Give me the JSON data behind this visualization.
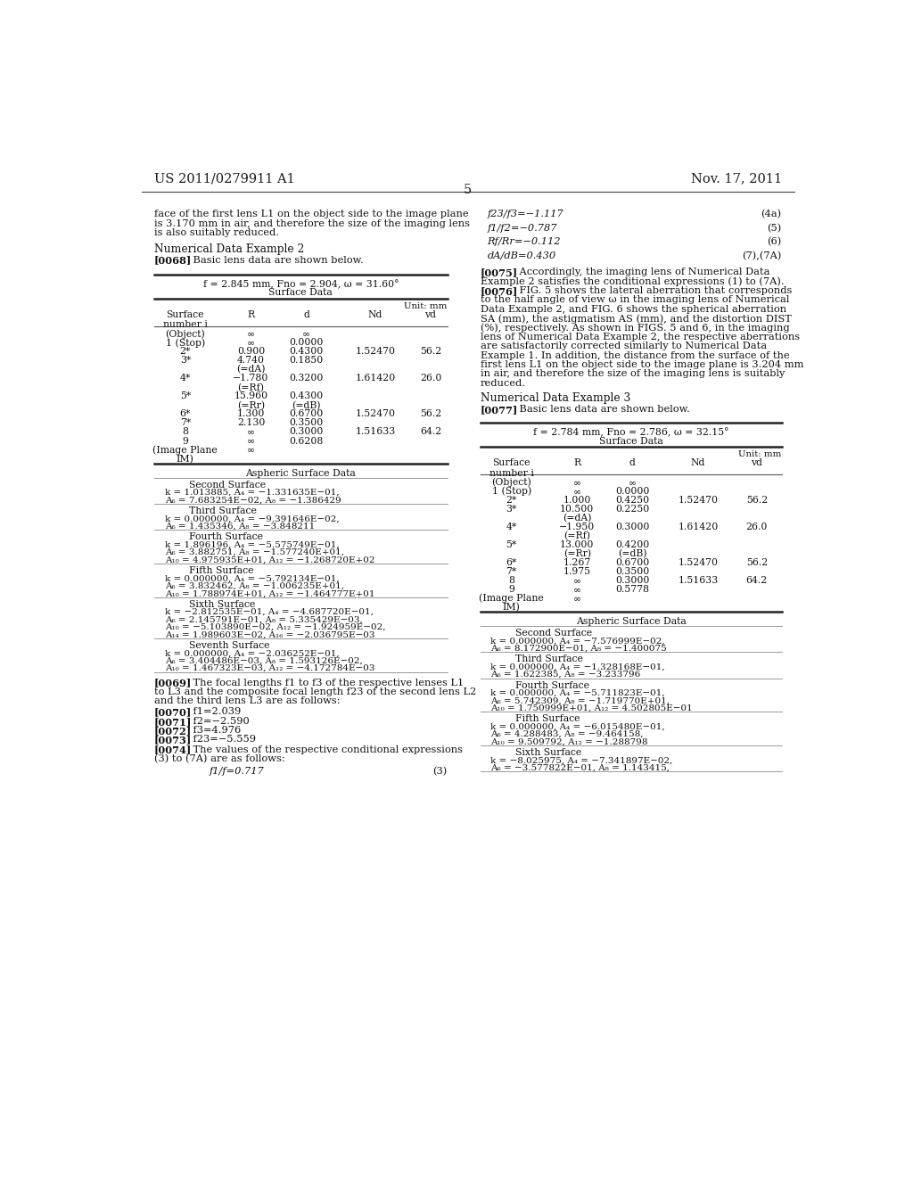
{
  "bg_color": "#ffffff",
  "header_left": "US 2011/0279911 A1",
  "header_right": "Nov. 17, 2011",
  "page_number": "5",
  "left_col": {
    "intro_text": [
      "face of the first lens L1 on the object side to the image plane",
      "is 3.170 mm in air, and therefore the size of the imaging lens",
      "is also suitably reduced."
    ],
    "section_title": "Numerical Data Example 2",
    "para_0068_bold": "[0068]",
    "para_0068_rest": "    Basic lens data are shown below.",
    "table1_title": "f = 2.845 mm, Fno = 2.904, ω = 31.60°",
    "table1_subtitle": "Surface Data",
    "table1_unit": "Unit: mm",
    "table1_col_labels": [
      "Surface\nnumber i",
      "R",
      "d",
      "Nd",
      "vd"
    ],
    "table1_rows": [
      [
        "(Object)",
        "∞",
        "∞",
        "",
        ""
      ],
      [
        "1 (Stop)",
        "∞",
        "0.0000",
        "",
        ""
      ],
      [
        "2*",
        "0.900",
        "0.4300",
        "1.52470",
        "56.2"
      ],
      [
        "3*",
        "4.740",
        "0.1850",
        "",
        ""
      ],
      [
        "",
        "(=dA)",
        "",
        "",
        ""
      ],
      [
        "4*",
        "−1.780",
        "0.3200",
        "1.61420",
        "26.0"
      ],
      [
        "",
        "(=Rf)",
        "",
        "",
        ""
      ],
      [
        "5*",
        "15.960",
        "0.4300",
        "",
        ""
      ],
      [
        "",
        "(=Rr)",
        "(=dB)",
        "",
        ""
      ],
      [
        "6*",
        "1.300",
        "0.6700",
        "1.52470",
        "56.2"
      ],
      [
        "7*",
        "2.130",
        "0.3500",
        "",
        ""
      ],
      [
        "8",
        "∞",
        "0.3000",
        "1.51633",
        "64.2"
      ],
      [
        "9",
        "∞",
        "0.6208",
        "",
        ""
      ],
      [
        "(Image Plane",
        "∞",
        "",
        "",
        ""
      ],
      [
        "IM)",
        "",
        "",
        "",
        ""
      ]
    ],
    "aspherical_title": "Aspheric Surface Data",
    "aspherical_sections": [
      {
        "name": "Second Surface",
        "lines": [
          "k = 1.013885, A₄ = −1.331635E−01,",
          "A₆ = 7.683254E−02, A₈ = −1.386429"
        ]
      },
      {
        "name": "Third Surface",
        "lines": [
          "k = 0.000000, A₄ = −9.391646E−02,",
          "A₆ = 1.435346, A₈ = −3.848211"
        ]
      },
      {
        "name": "Fourth Surface",
        "lines": [
          "k = 1.896196, A₄ = −5.575749E−01,",
          "A₆ = 3.882751, A₈ = −1.577240E+01,",
          "A₁₀ = 4.975935E+01, A₁₂ = −1.268720E+02"
        ]
      },
      {
        "name": "Fifth Surface",
        "lines": [
          "k = 0.000000, A₄ = −5.792134E−01,",
          "A₆ = 3.832462, A₈ = −1.006235E+01,",
          "A₁₀ = 1.788974E+01, A₁₂ = −1.464777E+01"
        ]
      },
      {
        "name": "Sixth Surface",
        "lines": [
          "k = −2.812535E−01, A₄ = −4.687720E−01,",
          "A₆ = 2.145791E−01, A₈ = 5.335429E−03,",
          "A₁₀ = −5.103890E−02, A₁₂ = −1.924959E−02,",
          "A₁₄ = 1.989603E−02, A₁₆ = −2.036795E−03"
        ]
      },
      {
        "name": "Seventh Surface",
        "lines": [
          "k = 0.000000, A₄ = −2.036252E−01,",
          "A₆ = 3.404486E−03, A₈ = 1.593126E−02,",
          "A₁₀ = 1.467323E−03, A₁₂ = −4.172784E−03"
        ]
      }
    ],
    "para_0069_bold": "[0069]",
    "para_0069_rest": "    The focal lengths f1 to f3 of the respective lenses L1\nto L3 and the composite focal length f23 of the second lens L2\nand the third lens L3 are as follows:",
    "para_0070_bold": "[0070]",
    "para_0070_rest": "    f1=2.039",
    "para_0071_bold": "[0071]",
    "para_0071_rest": "    f2=−2.590",
    "para_0072_bold": "[0072]",
    "para_0072_rest": "    f3=4.976",
    "para_0073_bold": "[0073]",
    "para_0073_rest": "    f23=−5.559",
    "para_0074_bold": "[0074]",
    "para_0074_rest": "    The values of the respective conditional expressions\n(3) to (7A) are as follows:",
    "formula_fl": "f1/f=0.717",
    "formula_fl_num": "(3)"
  },
  "right_col": {
    "formulas": [
      {
        "text": "f23/f3=−1.117",
        "num": "(4a)"
      },
      {
        "text": "f1/f2=−0.787",
        "num": "(5)"
      },
      {
        "text": "Rf/Rr=−0.112",
        "num": "(6)"
      },
      {
        "text": "dA/dB=0.430",
        "num": "(7),(7A)"
      }
    ],
    "para_0075_bold": "[0075]",
    "para_0075_rest": "    Accordingly, the imaging lens of Numerical Data\nExample 2 satisfies the conditional expressions (1) to (7A).",
    "para_0076_bold": "[0076]",
    "para_0076_rest": "    FIG. 5 shows the lateral aberration that corresponds\nto the half angle of view ω in the imaging lens of Numerical\nData Example 2, and FIG. 6 shows the spherical aberration\nSA (mm), the astigmatism AS (mm), and the distortion DIST\n(%), respectively. As shown in FIGS. 5 and 6, in the imaging\nlens of Numerical Data Example 2, the respective aberrations\nare satisfactorily corrected similarly to Numerical Data\nExample 1. In addition, the distance from the surface of the\nfirst lens L1 on the object side to the image plane is 3.204 mm\nin air, and therefore the size of the imaging lens is suitably\nreduced.",
    "section_title": "Numerical Data Example 3",
    "para_0077_bold": "[0077]",
    "para_0077_rest": "    Basic lens data are shown below.",
    "table2_title": "f = 2.784 mm, Fno = 2.786, ω = 32.15°",
    "table2_subtitle": "Surface Data",
    "table2_unit": "Unit: mm",
    "table2_col_labels": [
      "Surface\nnumber i",
      "R",
      "d",
      "Nd",
      "vd"
    ],
    "table2_rows": [
      [
        "(Object)",
        "∞",
        "∞",
        "",
        ""
      ],
      [
        "1 (Stop)",
        "∞",
        "0.0000",
        "",
        ""
      ],
      [
        "2*",
        "1.000",
        "0.4250",
        "1.52470",
        "56.2"
      ],
      [
        "3*",
        "10.500",
        "0.2250",
        "",
        ""
      ],
      [
        "",
        "(=dA)",
        "",
        "",
        ""
      ],
      [
        "4*",
        "−1.950",
        "0.3000",
        "1.61420",
        "26.0"
      ],
      [
        "",
        "(=Rf)",
        "",
        "",
        ""
      ],
      [
        "5*",
        "13.000",
        "0.4200",
        "",
        ""
      ],
      [
        "",
        "(=Rr)",
        "(=dB)",
        "",
        ""
      ],
      [
        "6*",
        "1.267",
        "0.6700",
        "1.52470",
        "56.2"
      ],
      [
        "7*",
        "1.975",
        "0.3500",
        "",
        ""
      ],
      [
        "8",
        "∞",
        "0.3000",
        "1.51633",
        "64.2"
      ],
      [
        "9",
        "∞",
        "0.5778",
        "",
        ""
      ],
      [
        "(Image Plane",
        "∞",
        "",
        "",
        ""
      ],
      [
        "IM)",
        "",
        "",
        "",
        ""
      ]
    ],
    "aspherical_title": "Aspheric Surface Data",
    "aspherical_sections": [
      {
        "name": "Second Surface",
        "lines": [
          "k = 0.000000, A₄ = −7.576999E−02,",
          "A₆ = 8.172900E−01, A₈ = −1.400075"
        ]
      },
      {
        "name": "Third Surface",
        "lines": [
          "k = 0.000000, A₄ = −1.328168E−01,",
          "A₆ = 1.622385, A₈ = −3.233796"
        ]
      },
      {
        "name": "Fourth Surface",
        "lines": [
          "k = 0.000000, A₄ = −5.711823E−01,",
          "A₆ = 5.742309, A₈ = −1.719770E+01,",
          "A₁₀ = 1.750999E+01, A₁₂ = 4.502805E−01"
        ]
      },
      {
        "name": "Fifth Surface",
        "lines": [
          "k = 0.000000, A₄ = −6.015480E−01,",
          "A₆ = 4.288483, A₈ = −9.464158,",
          "A₁₀ = 9.509792, A₁₂ = −1.288798"
        ]
      },
      {
        "name": "Sixth Surface",
        "lines": [
          "k = −8.025975, A₄ = −7.341897E−02,",
          "A₆ = −3.577822E−01, A₈ = 1.143415,"
        ]
      }
    ]
  }
}
